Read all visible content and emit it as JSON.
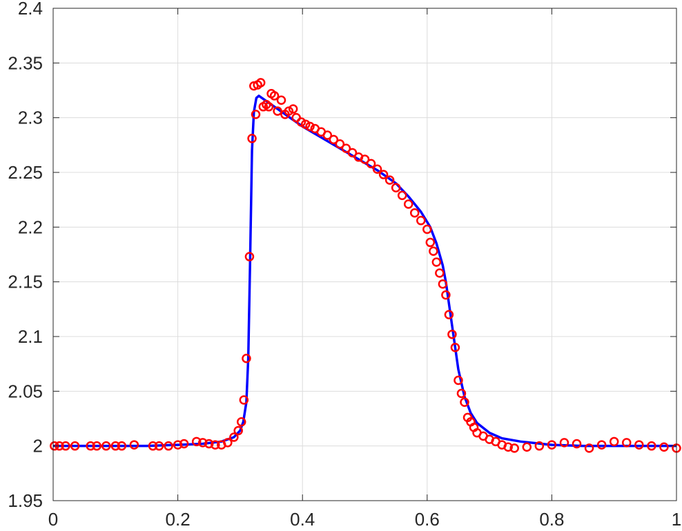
{
  "chart_data": {
    "type": "line",
    "title": "",
    "xlabel": "",
    "ylabel": "",
    "xlim": [
      0,
      1
    ],
    "ylim": [
      1.95,
      2.4
    ],
    "xticks": [
      0,
      0.2,
      0.4,
      0.6,
      0.8,
      1
    ],
    "xtick_labels": [
      "0",
      "0.2",
      "0.4",
      "0.6",
      "0.8",
      "1"
    ],
    "yticks": [
      1.95,
      2,
      2.05,
      2.1,
      2.15,
      2.2,
      2.25,
      2.3,
      2.35,
      2.4
    ],
    "ytick_labels": [
      "1.95",
      "2",
      "2.05",
      "2.1",
      "2.15",
      "2.2",
      "2.25",
      "2.3",
      "2.35",
      "2.4"
    ],
    "grid": true,
    "legend": "none",
    "series": [
      {
        "style": "line",
        "color": "#0000ff",
        "x": [
          0,
          0.05,
          0.1,
          0.15,
          0.2,
          0.24,
          0.27,
          0.29,
          0.3,
          0.305,
          0.31,
          0.313,
          0.316,
          0.319,
          0.322,
          0.326,
          0.33,
          0.34,
          0.36,
          0.38,
          0.4,
          0.43,
          0.46,
          0.49,
          0.52,
          0.55,
          0.57,
          0.59,
          0.605,
          0.615,
          0.625,
          0.63,
          0.635,
          0.64,
          0.645,
          0.65,
          0.66,
          0.67,
          0.68,
          0.7,
          0.72,
          0.75,
          0.8,
          0.85,
          0.9,
          0.95,
          1
        ],
        "y": [
          2,
          2,
          2,
          2,
          2.001,
          2.002,
          2.004,
          2.008,
          2.014,
          2.022,
          2.04,
          2.08,
          2.17,
          2.27,
          2.305,
          2.318,
          2.32,
          2.316,
          2.308,
          2.3,
          2.292,
          2.282,
          2.272,
          2.262,
          2.252,
          2.24,
          2.228,
          2.214,
          2.2,
          2.185,
          2.165,
          2.15,
          2.13,
          2.11,
          2.09,
          2.07,
          2.045,
          2.03,
          2.021,
          2.012,
          2.007,
          2.004,
          2.001,
          2,
          2,
          2,
          2
        ]
      },
      {
        "style": "markers",
        "marker": "circle",
        "color": "#ff0000",
        "x": [
          0.002,
          0.01,
          0.02,
          0.035,
          0.06,
          0.07,
          0.085,
          0.1,
          0.11,
          0.13,
          0.16,
          0.17,
          0.185,
          0.2,
          0.21,
          0.23,
          0.24,
          0.25,
          0.26,
          0.27,
          0.28,
          0.29,
          0.297,
          0.302,
          0.306,
          0.31,
          0.315,
          0.319,
          0.322,
          0.325,
          0.328,
          0.333,
          0.337,
          0.342,
          0.346,
          0.35,
          0.355,
          0.36,
          0.366,
          0.372,
          0.378,
          0.385,
          0.39,
          0.398,
          0.405,
          0.412,
          0.42,
          0.43,
          0.44,
          0.45,
          0.46,
          0.47,
          0.48,
          0.49,
          0.5,
          0.51,
          0.52,
          0.53,
          0.54,
          0.55,
          0.56,
          0.57,
          0.58,
          0.59,
          0.6,
          0.605,
          0.61,
          0.615,
          0.62,
          0.625,
          0.63,
          0.635,
          0.64,
          0.645,
          0.65,
          0.655,
          0.66,
          0.665,
          0.67,
          0.675,
          0.68,
          0.69,
          0.7,
          0.71,
          0.72,
          0.73,
          0.74,
          0.76,
          0.78,
          0.8,
          0.82,
          0.84,
          0.86,
          0.88,
          0.9,
          0.92,
          0.94,
          0.96,
          0.98,
          1
        ],
        "y": [
          2,
          2,
          2,
          2,
          2,
          2,
          2,
          2,
          2,
          2.001,
          2,
          2,
          2,
          2.001,
          2.002,
          2.004,
          2.003,
          2.002,
          2.001,
          2.001,
          2.003,
          2.008,
          2.014,
          2.022,
          2.042,
          2.08,
          2.173,
          2.281,
          2.329,
          2.303,
          2.33,
          2.332,
          2.31,
          2.312,
          2.31,
          2.322,
          2.32,
          2.306,
          2.316,
          2.303,
          2.306,
          2.308,
          2.3,
          2.296,
          2.294,
          2.292,
          2.29,
          2.287,
          2.284,
          2.28,
          2.276,
          2.272,
          2.268,
          2.264,
          2.262,
          2.258,
          2.253,
          2.248,
          2.243,
          2.236,
          2.229,
          2.221,
          2.213,
          2.206,
          2.198,
          2.186,
          2.178,
          2.168,
          2.158,
          2.148,
          2.138,
          2.12,
          2.102,
          2.09,
          2.06,
          2.048,
          2.04,
          2.026,
          2.022,
          2.017,
          2.012,
          2.009,
          2.006,
          2.004,
          2.001,
          1.999,
          1.998,
          1.999,
          2,
          2.001,
          2.003,
          2.002,
          1.998,
          2.001,
          2.004,
          2.003,
          2.001,
          2,
          1.999,
          1.998
        ]
      }
    ]
  }
}
